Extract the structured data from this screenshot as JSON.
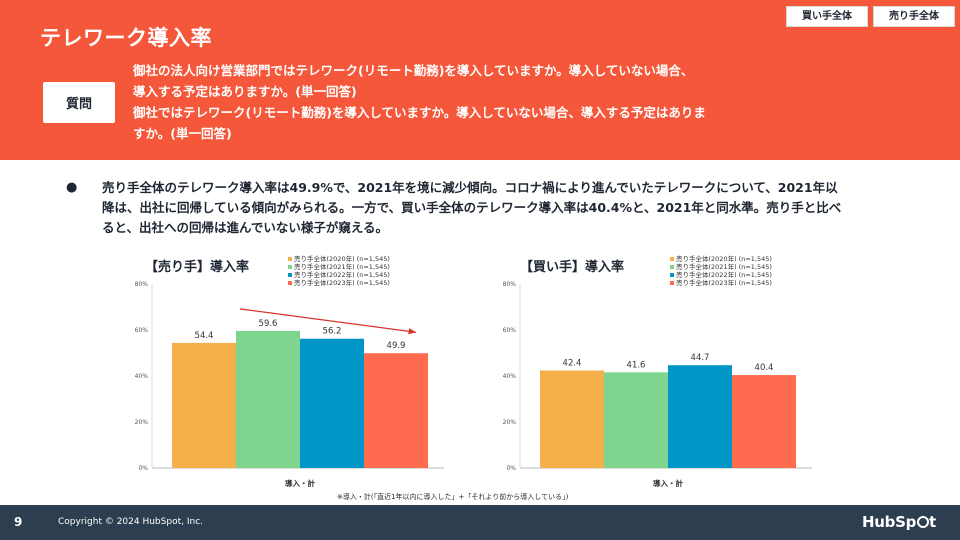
{
  "header": {
    "title": "テレワーク導入率",
    "tags": [
      "買い手全体",
      "売り手全体"
    ],
    "question_label": "質問",
    "question_lines": [
      "御社の法人向け営業部門ではテレワーク(リモート勤務)を導入していますか。導入していない場合、",
      "導入する予定はありますか。(単一回答)",
      "御社ではテレワーク(リモート勤務)を導入していますか。導入していない場合、導入する予定はありま",
      "すか。(単一回答)"
    ]
  },
  "body": {
    "bullet": "売り手全体のテレワーク導入率は49.9%で、2021年を境に減少傾向。コロナ禍により進んでいたテレワークについて、2021年以降は、出社に回帰している傾向がみられる。一方で、買い手全体のテレワーク導入率は40.4%と、2021年と同水準。売り手と比べると、出社への回帰は進んでいない様子が窺える。",
    "footnote": "※導入・計(「直近1年以内に導入した」+「それより前から導入している」)"
  },
  "legend_colors": [
    "#f5b04c",
    "#7ed68e",
    "#0096c7",
    "#ff6b4e"
  ],
  "chart_data": [
    {
      "type": "bar",
      "title": "【売り手】導入率",
      "categories": [
        "導入・計"
      ],
      "xlabel": "導入・計",
      "ylabel": "",
      "ylim": [
        0,
        80
      ],
      "yticks": [
        0,
        20,
        40,
        60,
        80
      ],
      "ytick_labels": [
        "0%",
        "20%",
        "40%",
        "60%",
        "80%"
      ],
      "series": [
        {
          "name": "売り手全体(2020年) (n=1,545)",
          "values": [
            54.4
          ],
          "label": "54.4"
        },
        {
          "name": "売り手全体(2021年) (n=1,545)",
          "values": [
            59.6
          ],
          "label": "59.6"
        },
        {
          "name": "売り手全体(2022年) (n=1,545)",
          "values": [
            56.2
          ],
          "label": "56.2"
        },
        {
          "name": "売り手全体(2023年) (n=1,545)",
          "values": [
            49.9
          ],
          "label": "49.9"
        }
      ],
      "trend_arrow": true,
      "grid": false,
      "legend_position": "top-right"
    },
    {
      "type": "bar",
      "title": "【買い手】導入率",
      "categories": [
        "導入・計"
      ],
      "xlabel": "導入・計",
      "ylabel": "",
      "ylim": [
        0,
        80
      ],
      "yticks": [
        0,
        20,
        40,
        60,
        80
      ],
      "ytick_labels": [
        "0%",
        "20%",
        "40%",
        "60%",
        "80%"
      ],
      "series": [
        {
          "name": "売り手全体(2020年) (n=1,545)",
          "values": [
            42.4
          ],
          "label": "42.4"
        },
        {
          "name": "売り手全体(2021年) (n=1,545)",
          "values": [
            41.6
          ],
          "label": "41.6"
        },
        {
          "name": "売り手全体(2022年) (n=1,545)",
          "values": [
            44.7
          ],
          "label": "44.7"
        },
        {
          "name": "売り手全体(2023年) (n=1,545)",
          "values": [
            40.4
          ],
          "label": "40.4"
        }
      ],
      "trend_arrow": false,
      "grid": false,
      "legend_position": "top-right"
    }
  ],
  "footer": {
    "page_number": "9",
    "copyright": "Copyright © 2024 HubSpot, Inc.",
    "logo_left": "HubSp",
    "logo_right": "t"
  }
}
